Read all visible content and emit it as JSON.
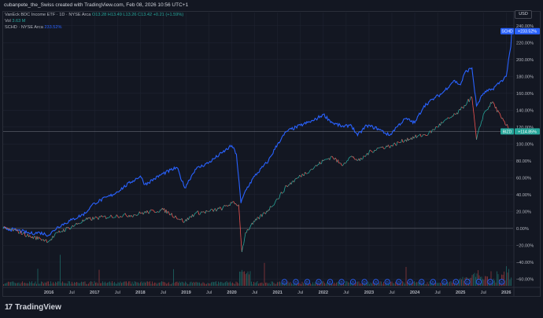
{
  "caption": "cubanpete_the_Swiss created with TradingView.com, Feb 08, 2026 10:56 UTC+1",
  "legend": {
    "symbol": "VanEck BDC Income ETF · 1D · NYSE Arca",
    "ohlc": "O13.28 H13.49 L13.26 C13.42 +0.21 (+1.59%)",
    "vol_label": "Vol",
    "vol_value": "3.63 M",
    "compare_symbol": "SCHD · NYSE Arca",
    "compare_value": "233.52%"
  },
  "currency": "USD",
  "brand": {
    "logo_mark": "17",
    "name": "TradingView"
  },
  "colors": {
    "background": "#131722",
    "schd_line": "#2962ff",
    "bizd_up": "#26a69a",
    "bizd_down": "#ef5350",
    "grid": "#1f2331"
  },
  "chart_data": {
    "type": "line",
    "title": "",
    "ylabel": "",
    "y_unit": "%",
    "ylim": [
      -68,
      250
    ],
    "xlim": [
      2015.0,
      2026.15
    ],
    "grid": true,
    "x_ticks": [
      {
        "label": "2016",
        "x": 2016.0
      },
      {
        "label": "Jul",
        "x": 2016.5
      },
      {
        "label": "2017",
        "x": 2017.0
      },
      {
        "label": "Jul",
        "x": 2017.5
      },
      {
        "label": "2018",
        "x": 2018.0
      },
      {
        "label": "Jul",
        "x": 2018.5
      },
      {
        "label": "2019",
        "x": 2019.0
      },
      {
        "label": "Jul",
        "x": 2019.5
      },
      {
        "label": "2020",
        "x": 2020.0
      },
      {
        "label": "Jul",
        "x": 2020.5
      },
      {
        "label": "2021",
        "x": 2021.0
      },
      {
        "label": "Jul",
        "x": 2021.5
      },
      {
        "label": "2022",
        "x": 2022.0
      },
      {
        "label": "Jul",
        "x": 2022.5
      },
      {
        "label": "2023",
        "x": 2023.0
      },
      {
        "label": "Jul",
        "x": 2023.5
      },
      {
        "label": "2024",
        "x": 2024.0
      },
      {
        "label": "Jul",
        "x": 2024.5
      },
      {
        "label": "2025",
        "x": 2025.0
      },
      {
        "label": "Jul",
        "x": 2025.5
      },
      {
        "label": "2026",
        "x": 2026.0
      }
    ],
    "y_ticks": [
      {
        "label": "240.00%",
        "y": 240
      },
      {
        "label": "220.00%",
        "y": 220
      },
      {
        "label": "200.00%",
        "y": 200
      },
      {
        "label": "180.00%",
        "y": 180
      },
      {
        "label": "160.00%",
        "y": 160
      },
      {
        "label": "140.00%",
        "y": 140
      },
      {
        "label": "120.00%",
        "y": 120
      },
      {
        "label": "100.00%",
        "y": 100
      },
      {
        "label": "80.00%",
        "y": 80
      },
      {
        "label": "60.00%",
        "y": 60
      },
      {
        "label": "40.00%",
        "y": 40
      },
      {
        "label": "20.00%",
        "y": 20
      },
      {
        "label": "0.00%",
        "y": 0
      },
      {
        "label": "−20.00%",
        "y": -20
      },
      {
        "label": "−40.00%",
        "y": -40
      },
      {
        "label": "−60.00%",
        "y": -60
      }
    ],
    "series": [
      {
        "name": "SCHD",
        "badge": "+233.52%",
        "last": 233.52,
        "color": "#2962ff",
        "x": [
          2015.0,
          2015.3,
          2015.6,
          2015.8,
          2016.0,
          2016.2,
          2016.5,
          2016.8,
          2016.9,
          2017.0,
          2017.4,
          2017.8,
          2018.0,
          2018.1,
          2018.5,
          2018.8,
          2018.97,
          2019.2,
          2019.5,
          2019.8,
          2020.0,
          2020.1,
          2020.2,
          2020.3,
          2020.5,
          2020.8,
          2021.0,
          2021.2,
          2021.5,
          2021.8,
          2022.0,
          2022.2,
          2022.45,
          2022.6,
          2022.75,
          2022.95,
          2023.2,
          2023.45,
          2023.6,
          2023.8,
          2024.0,
          2024.2,
          2024.45,
          2024.6,
          2024.85,
          2025.0,
          2025.1,
          2025.25,
          2025.35,
          2025.5,
          2025.7,
          2025.9,
          2026.0,
          2026.05,
          2026.1,
          2026.12
        ],
        "y": [
          0,
          -2,
          -6,
          -5,
          -8,
          2,
          10,
          18,
          25,
          30,
          40,
          55,
          62,
          52,
          65,
          72,
          48,
          70,
          78,
          90,
          98,
          88,
          30,
          45,
          62,
          80,
          100,
          115,
          122,
          128,
          135,
          125,
          120,
          123,
          110,
          122,
          118,
          110,
          120,
          130,
          125,
          145,
          155,
          160,
          175,
          170,
          185,
          190,
          145,
          160,
          165,
          175,
          180,
          200,
          215,
          233.5
        ]
      },
      {
        "name": "BIZD",
        "badge": "+114.85%",
        "last": 114.85,
        "color": "#ef5350",
        "x": [
          2015.0,
          2015.3,
          2015.6,
          2015.8,
          2016.0,
          2016.2,
          2016.5,
          2016.8,
          2017.0,
          2017.5,
          2017.9,
          2018.0,
          2018.5,
          2018.97,
          2019.2,
          2019.5,
          2019.8,
          2020.0,
          2020.15,
          2020.22,
          2020.3,
          2020.5,
          2020.8,
          2021.0,
          2021.2,
          2021.5,
          2021.8,
          2022.0,
          2022.2,
          2022.4,
          2022.6,
          2022.8,
          2023.0,
          2023.2,
          2023.5,
          2023.8,
          2024.0,
          2024.3,
          2024.6,
          2024.9,
          2025.0,
          2025.15,
          2025.25,
          2025.35,
          2025.5,
          2025.7,
          2025.9,
          2026.0,
          2026.12
        ],
        "y": [
          0,
          -3,
          -10,
          -12,
          -15,
          -5,
          2,
          10,
          12,
          15,
          16,
          18,
          22,
          8,
          18,
          20,
          24,
          30,
          28,
          -28,
          -5,
          8,
          22,
          35,
          50,
          62,
          72,
          80,
          85,
          75,
          85,
          80,
          90,
          95,
          98,
          105,
          108,
          112,
          125,
          135,
          140,
          150,
          155,
          105,
          135,
          150,
          130,
          122,
          114.85
        ]
      }
    ],
    "volume_note": "Volume histogram of BIZD along the bottom of the pane",
    "dividend_markers": [
      2021.15,
      2021.4,
      2021.65,
      2021.9,
      2022.15,
      2022.4,
      2022.65,
      2022.9,
      2023.15,
      2023.4,
      2023.65,
      2023.9,
      2024.15,
      2024.4,
      2024.65,
      2024.9,
      2025.15,
      2025.4,
      2025.65,
      2025.9
    ],
    "dividend_marker_label": "D"
  }
}
